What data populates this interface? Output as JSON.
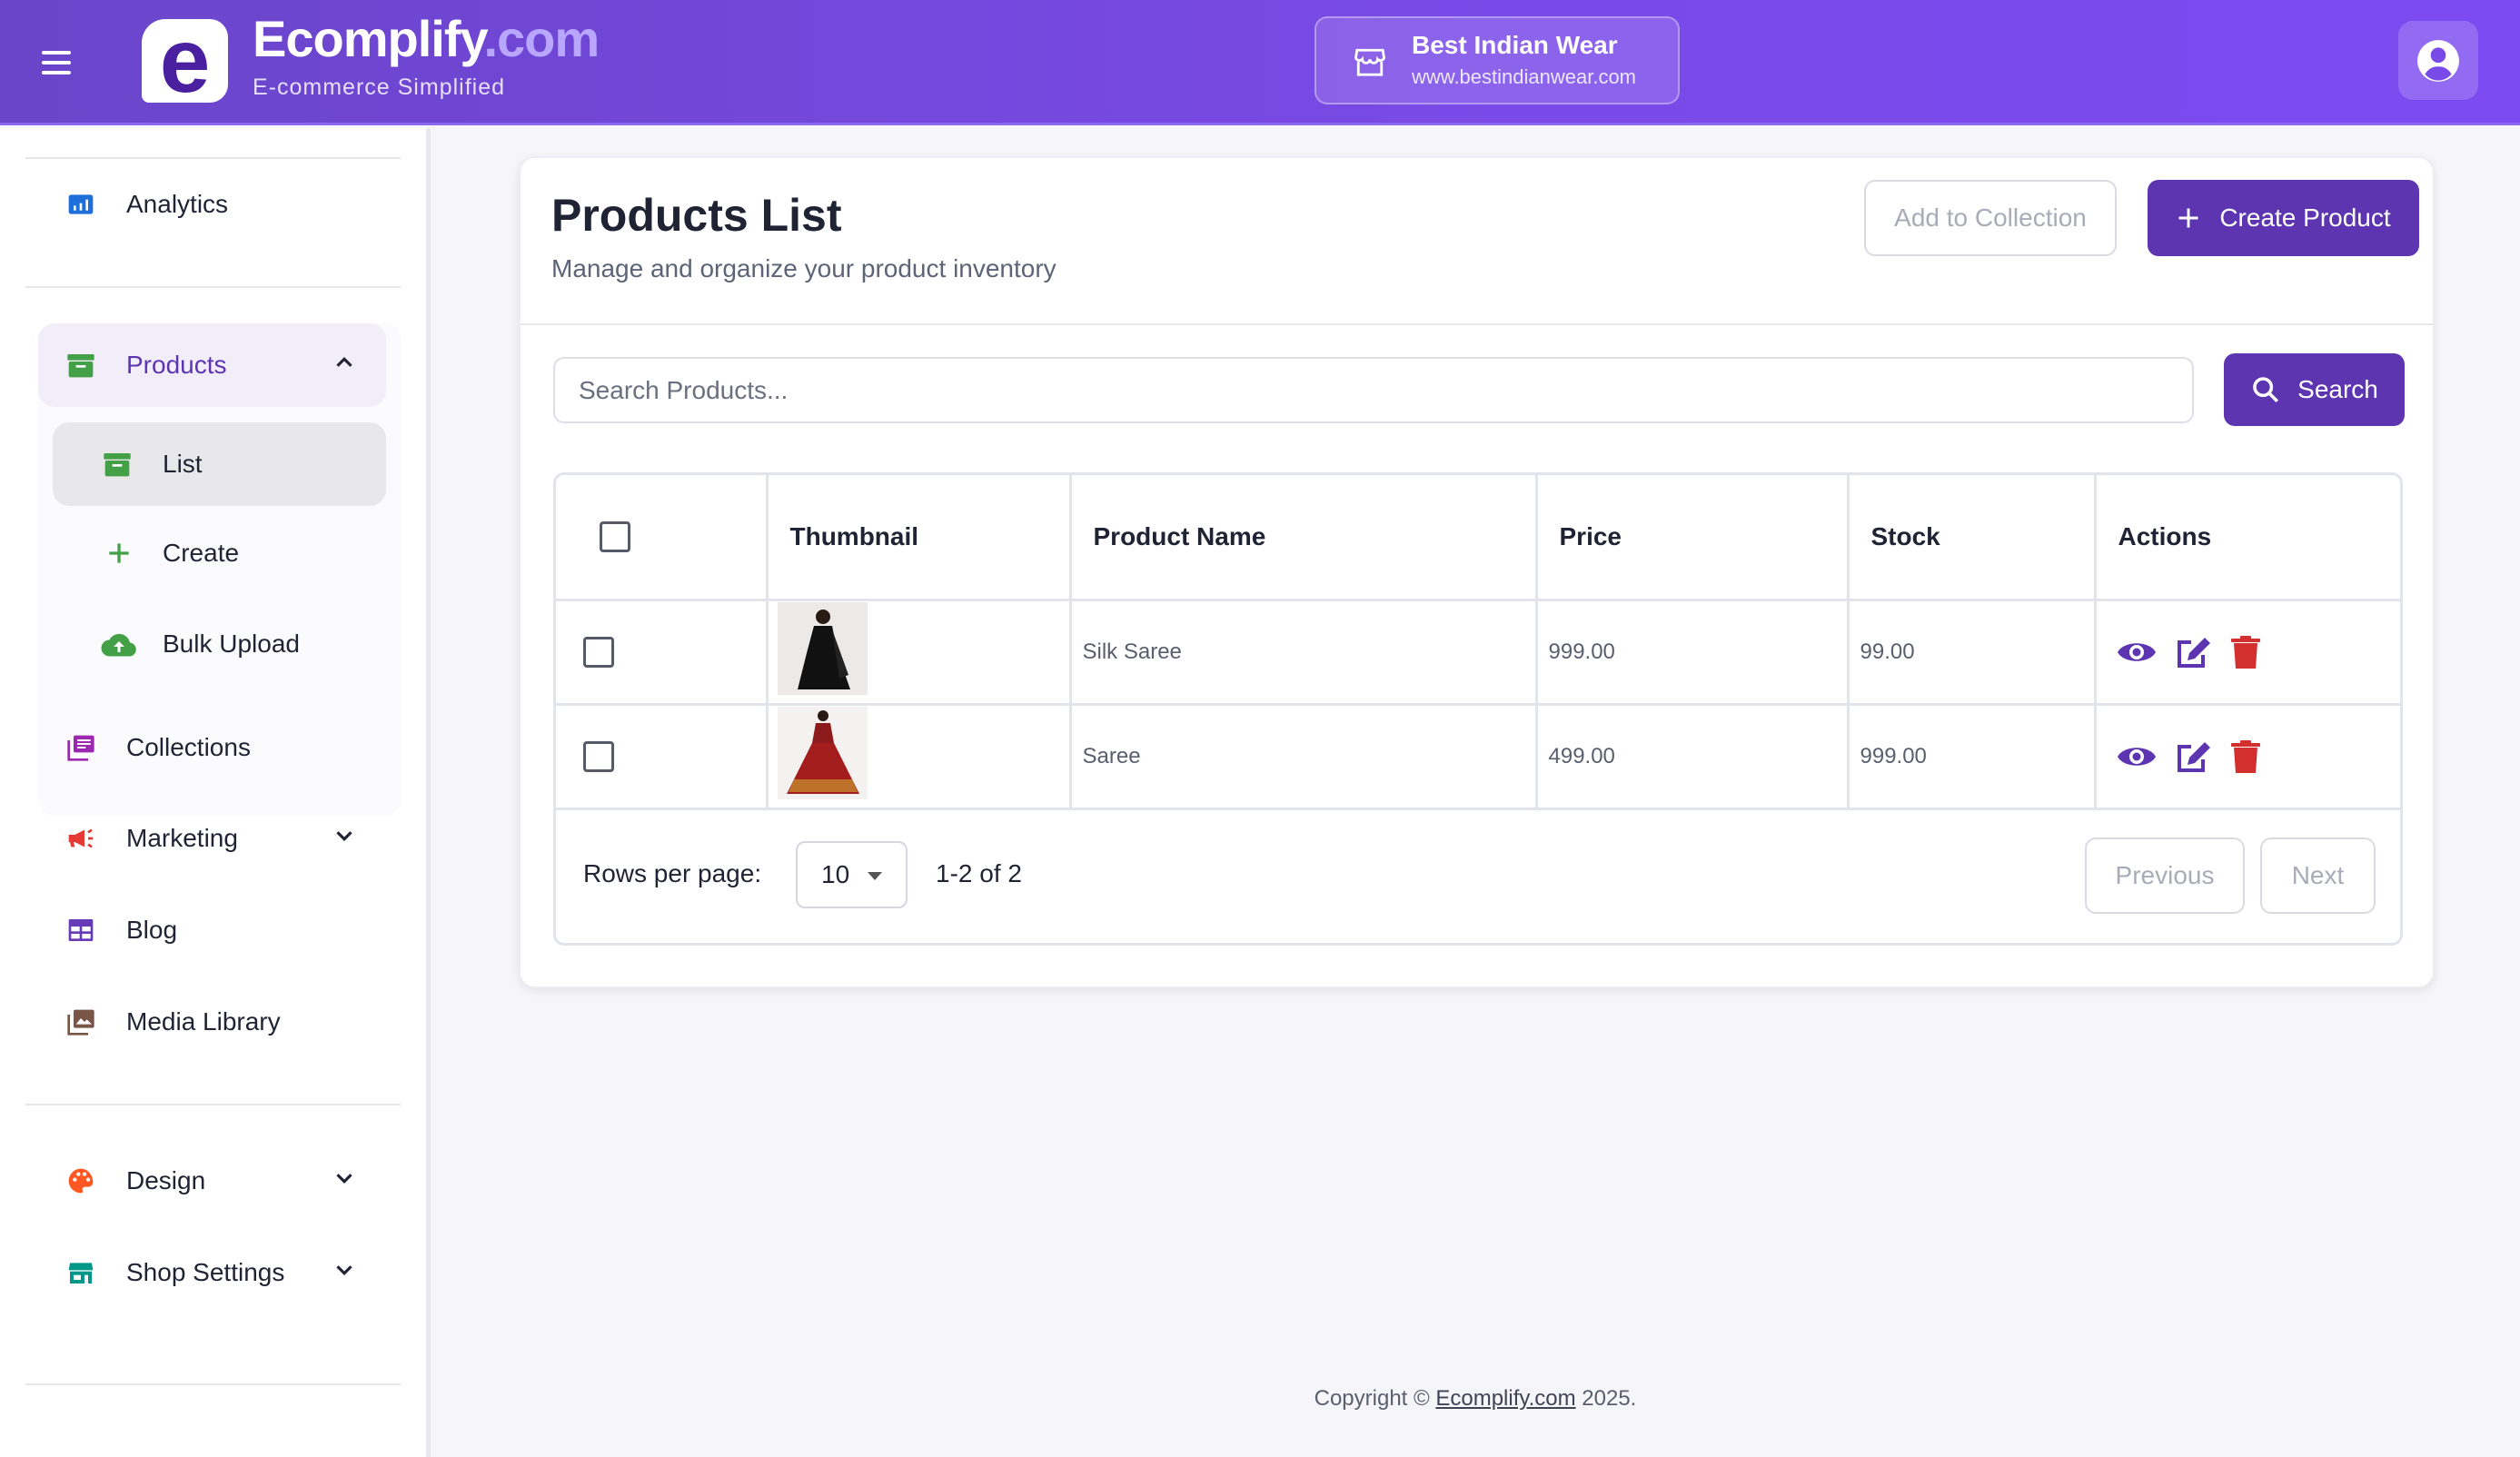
{
  "header": {
    "brand_main": "Ecomplify",
    "brand_suffix": ".com",
    "tagline": "E-commerce Simplified",
    "logo_letter": "e",
    "store": {
      "name": "Best Indian Wear",
      "url": "www.bestindianwear.com"
    }
  },
  "sidebar": {
    "items": [
      {
        "label": "Analytics",
        "icon": "analytics-icon",
        "color": "#1e6fd9"
      },
      {
        "label": "Products",
        "icon": "archive-icon",
        "color": "#43a047",
        "expanded": true,
        "active": true,
        "children": [
          {
            "label": "List",
            "icon": "archive-icon",
            "selected": true
          },
          {
            "label": "Create",
            "icon": "plus-icon"
          },
          {
            "label": "Bulk Upload",
            "icon": "cloud-upload-icon"
          }
        ]
      },
      {
        "label": "Collections",
        "icon": "collections-icon",
        "color": "#9c27b0"
      },
      {
        "label": "Marketing",
        "icon": "megaphone-icon",
        "color": "#e53935"
      },
      {
        "label": "Blog",
        "icon": "blog-icon",
        "color": "#673ab7"
      },
      {
        "label": "Media Library",
        "icon": "photo-library-icon",
        "color": "#795548"
      },
      {
        "label": "Design",
        "icon": "palette-icon",
        "color": "#ff5722"
      },
      {
        "label": "Shop Settings",
        "icon": "store-icon",
        "color": "#009688"
      }
    ]
  },
  "main": {
    "title": "Products List",
    "subtitle": "Manage and organize your product inventory",
    "add_to_collection": "Add to Collection",
    "create_product": "Create Product",
    "search": {
      "placeholder": "Search Products...",
      "value": "",
      "button": "Search"
    },
    "table": {
      "columns": [
        "Thumbnail",
        "Product Name",
        "Price",
        "Stock",
        "Actions"
      ],
      "rows": [
        {
          "name": "Silk Saree",
          "price": "999.00",
          "stock": "99.00",
          "thumb": "black saree"
        },
        {
          "name": "Saree",
          "price": "499.00",
          "stock": "999.00",
          "thumb": "red lehenga"
        }
      ]
    },
    "pagination": {
      "rows_per_page_label": "Rows per page:",
      "rows_per_page": "10",
      "range": "1-2 of 2",
      "previous": "Previous",
      "next": "Next"
    }
  },
  "footer": {
    "prefix": "Copyright © ",
    "link": "Ecomplify.com",
    "suffix": " 2025."
  },
  "colors": {
    "primary": "#5e35b1",
    "danger": "#d32f2f",
    "header": "#7a4ae8"
  }
}
